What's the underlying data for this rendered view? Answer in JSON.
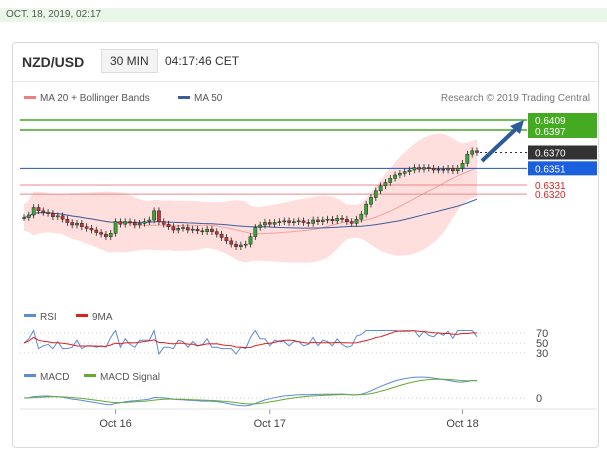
{
  "timestamp": "OCT. 18, 2019, 02:17",
  "header": {
    "pair": "NZD/USD",
    "timeframe": "30 MIN",
    "time": "04:17:46 CET"
  },
  "legend": {
    "ma20": "MA 20 + Bollinger Bands",
    "ma50": "MA 50",
    "credit": "Research © 2019 Trading Central"
  },
  "colors": {
    "up": "#33aa33",
    "down": "#cc3333",
    "ma50": "#3a5f9a",
    "band": "#ffd6d6",
    "levelGreen": "#44aa22",
    "levelRed": "#ee8888",
    "levelBlue": "#2255bb"
  },
  "chart_data": {
    "type": "candlestick",
    "x_ticks": [
      "Oct 16",
      "Oct 17",
      "Oct 18"
    ],
    "levels": [
      {
        "label": "0.6409",
        "value": 0.6409,
        "style": "green"
      },
      {
        "label": "0.6397",
        "value": 0.6397,
        "style": "green"
      },
      {
        "label": "0.6370",
        "value": 0.637,
        "style": "current"
      },
      {
        "label": "0.6351",
        "value": 0.6351,
        "style": "blue"
      },
      {
        "label": "0.6331",
        "value": 0.6331,
        "style": "red"
      },
      {
        "label": "0.6320",
        "value": 0.632,
        "style": "red"
      }
    ],
    "closes": [
      0.6292,
      0.6295,
      0.6304,
      0.63,
      0.6298,
      0.6297,
      0.6293,
      0.6294,
      0.629,
      0.6286,
      0.6283,
      0.6285,
      0.6281,
      0.6279,
      0.6277,
      0.6274,
      0.6272,
      0.6269,
      0.6273,
      0.6287,
      0.6284,
      0.6287,
      0.6286,
      0.6283,
      0.6285,
      0.6287,
      0.6289,
      0.63,
      0.6287,
      0.6284,
      0.6281,
      0.6277,
      0.6279,
      0.628,
      0.6277,
      0.6278,
      0.6276,
      0.6275,
      0.6278,
      0.6275,
      0.6272,
      0.6268,
      0.6264,
      0.626,
      0.6257,
      0.6259,
      0.626,
      0.6269,
      0.628,
      0.6283,
      0.6286,
      0.6284,
      0.6286,
      0.6287,
      0.6288,
      0.6286,
      0.6287,
      0.6288,
      0.6286,
      0.6285,
      0.6289,
      0.6287,
      0.6289,
      0.629,
      0.6288,
      0.6291,
      0.629,
      0.6287,
      0.6285,
      0.629,
      0.6296,
      0.6308,
      0.6316,
      0.6324,
      0.633,
      0.6334,
      0.6339,
      0.6343,
      0.6345,
      0.6347,
      0.6349,
      0.6352,
      0.635,
      0.6352,
      0.6351,
      0.6349,
      0.635,
      0.6349,
      0.6351,
      0.6348,
      0.6351,
      0.6357,
      0.6368,
      0.6372,
      0.637
    ],
    "rsi_levels": [
      70,
      50,
      30
    ],
    "macd_level": 0
  },
  "panels": {
    "rsi": {
      "label": "RSI",
      "ma_label": "9MA",
      "ticks": [
        "70",
        "50",
        "30"
      ]
    },
    "macd": {
      "label": "MACD",
      "signal_label": "MACD Signal",
      "ticks": [
        "0"
      ]
    }
  }
}
